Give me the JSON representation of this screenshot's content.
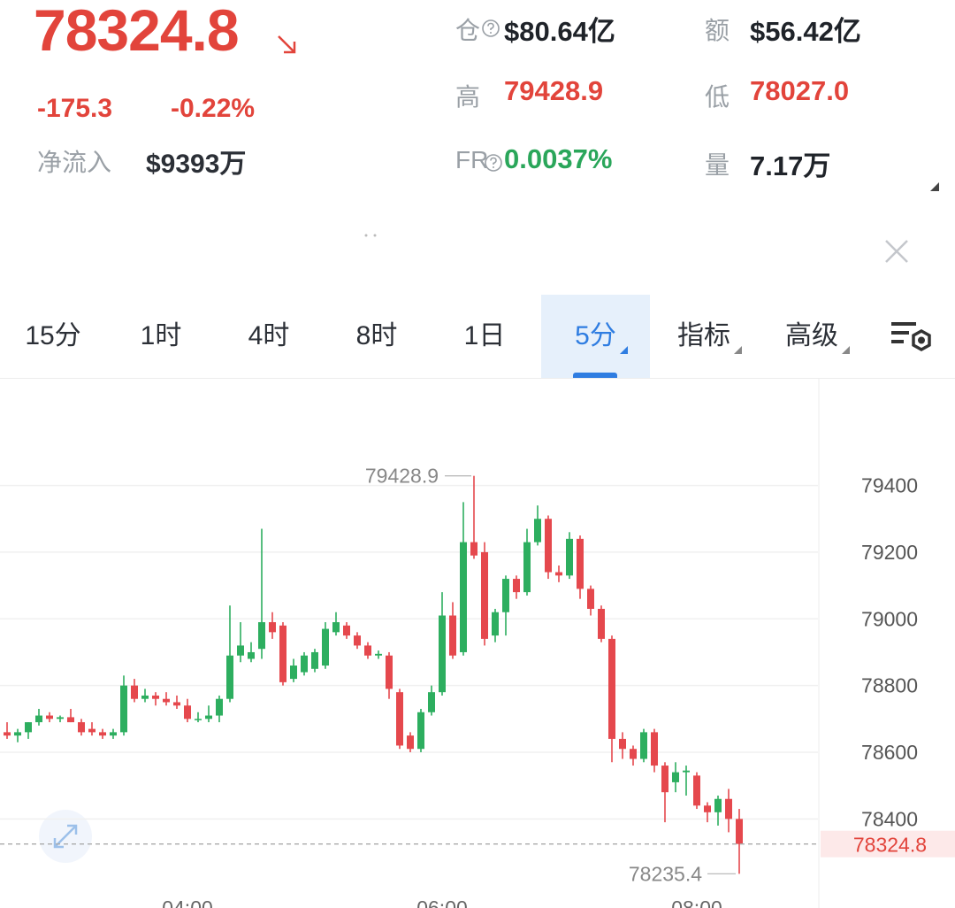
{
  "header": {
    "price": "78324.8",
    "change": "-175.3",
    "change_pct": "-0.22%",
    "net_inflow_label": "净流入",
    "net_inflow": "$9393万",
    "stats": [
      {
        "label": "仓",
        "value": "$80.64亿"
      },
      {
        "label": "额",
        "value": "$56.42亿"
      },
      {
        "label": "高",
        "value": "79428.9"
      },
      {
        "label": "低",
        "value": "78027.0"
      },
      {
        "label": "FR",
        "value": "0.0037%"
      },
      {
        "label": "量",
        "value": "7.17万"
      }
    ]
  },
  "tabs": [
    "15分",
    "1时",
    "4时",
    "8时",
    "1日",
    "5分",
    "指标",
    "高级"
  ],
  "chart_data": {
    "type": "candlestick",
    "up_color": "#2dae5f",
    "down_color": "#e5484d",
    "categories": [
      null,
      null,
      null,
      null,
      null,
      null,
      null,
      null,
      null,
      null,
      null,
      null,
      null,
      null,
      null,
      null,
      null,
      "04:00",
      null,
      null,
      null,
      null,
      null,
      null,
      null,
      null,
      null,
      null,
      null,
      null,
      null,
      null,
      null,
      null,
      null,
      null,
      null,
      null,
      null,
      null,
      null,
      "06:00",
      null,
      null,
      null,
      null,
      null,
      null,
      null,
      null,
      null,
      null,
      null,
      null,
      null,
      null,
      null,
      null,
      null,
      null,
      null,
      null,
      null,
      null,
      null,
      "08:00",
      null,
      null,
      null,
      null
    ],
    "open": [
      78660,
      78650,
      78660,
      78690,
      78710,
      78700,
      78705,
      78690,
      78670,
      78660,
      78650,
      78660,
      78800,
      78760,
      78770,
      78760,
      78750,
      78740,
      78700,
      78700,
      78710,
      78760,
      78890,
      78880,
      78910,
      78990,
      78980,
      78820,
      78840,
      78850,
      78860,
      78960,
      78980,
      78950,
      78920,
      78890,
      78890,
      78780,
      78650,
      78610,
      78720,
      78780,
      79010,
      78900,
      79230,
      79200,
      78950,
      79020,
      79120,
      79080,
      79230,
      79300,
      79140,
      79130,
      79240,
      79090,
      79030,
      78940,
      78640,
      78610,
      78580,
      78660,
      78560,
      78510,
      78540,
      78530,
      78440,
      78420,
      78460,
      78400
    ],
    "high": [
      78690,
      78670,
      78690,
      78730,
      78720,
      78710,
      78730,
      78700,
      78690,
      78670,
      78670,
      78830,
      78820,
      78790,
      78780,
      78780,
      78770,
      78760,
      78720,
      78740,
      78770,
      79040,
      78990,
      78930,
      79270,
      79020,
      78990,
      78880,
      78900,
      78910,
      78990,
      79020,
      78990,
      78960,
      78930,
      78905,
      78900,
      78790,
      78660,
      78730,
      78800,
      79080,
      79050,
      79350,
      79428.9,
      79230,
      79030,
      79130,
      79130,
      79270,
      79340,
      79310,
      79160,
      79260,
      79250,
      79100,
      79040,
      78950,
      78660,
      78620,
      78670,
      78670,
      78570,
      78570,
      78560,
      78540,
      78450,
      78470,
      78490,
      78430
    ],
    "low": [
      78640,
      78630,
      78640,
      78680,
      78690,
      78690,
      78690,
      78650,
      78650,
      78640,
      78640,
      78650,
      78750,
      78750,
      78740,
      78740,
      78730,
      78690,
      78690,
      78690,
      78690,
      78750,
      78870,
      78870,
      78880,
      78940,
      78800,
      78810,
      78830,
      78840,
      78850,
      78950,
      78940,
      78910,
      78880,
      78880,
      78760,
      78610,
      78600,
      78600,
      78710,
      78770,
      78880,
      78890,
      79180,
      78920,
      78930,
      78950,
      79060,
      79070,
      79220,
      79120,
      79110,
      79120,
      79060,
      79010,
      78930,
      78570,
      78580,
      78560,
      78570,
      78540,
      78390,
      78480,
      78470,
      78430,
      78390,
      78380,
      78360,
      78235.4
    ],
    "close": [
      78650,
      78660,
      78690,
      78710,
      78700,
      78705,
      78690,
      78660,
      78660,
      78650,
      78660,
      78800,
      78760,
      78770,
      78760,
      78750,
      78740,
      78700,
      78700,
      78710,
      78760,
      78890,
      78920,
      78900,
      78990,
      78960,
      78810,
      78860,
      78890,
      78900,
      78970,
      78990,
      78950,
      78920,
      78890,
      78895,
      78790,
      78620,
      78610,
      78720,
      78780,
      79010,
      78890,
      79230,
      79190,
      78940,
      79020,
      79120,
      79080,
      79230,
      79300,
      79140,
      79130,
      79240,
      79090,
      79030,
      78940,
      78640,
      78610,
      78580,
      78660,
      78560,
      78480,
      78540,
      78545,
      78440,
      78420,
      78460,
      78400,
      78324.8
    ],
    "ylim": [
      78170,
      79720
    ],
    "yticks": [
      78400,
      78600,
      78800,
      79000,
      79200,
      79400
    ],
    "grid": true,
    "high_label": 79428.9,
    "low_label": 78235.4,
    "last_price": 78324.8
  }
}
